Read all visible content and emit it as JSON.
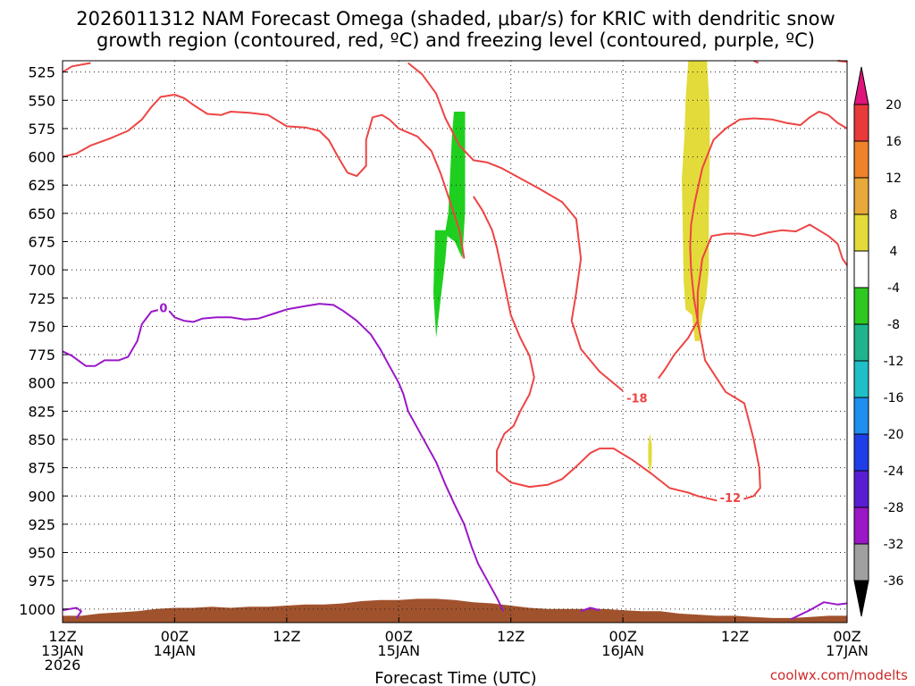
{
  "chart_data": {
    "type": "time-height contour plot",
    "title_line1": "2026011312 NAM Forecast Omega (shaded, μbar/s) for KRIC with dendritic snow",
    "title_line2": "growth region (contoured, red, ºC) and freezing level (contoured, purple, ºC)",
    "xlabel": "Forecast Time (UTC)",
    "credit": "coolwx.com/modelts",
    "x_range_hours": [
      0,
      84
    ],
    "x_ticks": [
      {
        "hour": 0,
        "l1": "12Z",
        "l2": "13JAN",
        "l3": "2026"
      },
      {
        "hour": 12,
        "l1": "00Z",
        "l2": "14JAN",
        "l3": ""
      },
      {
        "hour": 24,
        "l1": "12Z",
        "l2": "",
        "l3": ""
      },
      {
        "hour": 36,
        "l1": "00Z",
        "l2": "15JAN",
        "l3": ""
      },
      {
        "hour": 48,
        "l1": "12Z",
        "l2": "",
        "l3": ""
      },
      {
        "hour": 60,
        "l1": "00Z",
        "l2": "16JAN",
        "l3": ""
      },
      {
        "hour": 72,
        "l1": "12Z",
        "l2": "",
        "l3": ""
      },
      {
        "hour": 84,
        "l1": "00Z",
        "l2": "17JAN",
        "l3": ""
      }
    ],
    "y_ticks": [
      525,
      550,
      575,
      600,
      625,
      650,
      675,
      700,
      725,
      750,
      775,
      800,
      825,
      850,
      875,
      900,
      925,
      950,
      975,
      1000
    ],
    "y_range_hpa": [
      515,
      1012
    ],
    "colorbar": {
      "top_label": "20",
      "bottom_label": "-36",
      "boundary_labels": [
        "16",
        "12",
        "8",
        "4",
        "-4",
        "-8",
        "-12",
        "-16",
        "-20",
        "-24",
        "-28",
        "-32"
      ],
      "bands": [
        {
          "label": "12 to 16",
          "color": "#f0832a"
        },
        {
          "label": "8 to 12",
          "color": "#e8a93a"
        },
        {
          "label": "4 to 8",
          "color": "#e2db3a"
        },
        {
          "label": "-4 to 4",
          "color": "#ffffff"
        },
        {
          "label": "-8 to -4",
          "color": "#2ec820"
        },
        {
          "label": "-12 to -8",
          "color": "#20b48c"
        },
        {
          "label": "-16 to -12",
          "color": "#1fbfc8"
        },
        {
          "label": "-20 to -16",
          "color": "#1e8ef0"
        },
        {
          "label": "-24 to -20",
          "color": "#1e3ee8"
        },
        {
          "label": "-28 to -24",
          "color": "#5a1ed2"
        },
        {
          "label": "-32 to -28",
          "color": "#9a18c8"
        },
        {
          "label": "-36 to -32",
          "color": "#a0a0a0"
        }
      ],
      "top_band": {
        "label": "16 to 20",
        "color": "#e83a3a"
      },
      "top_arrow_color": "#e0147a",
      "bottom_arrow_color": "#000000"
    },
    "colors": {
      "dgz": "#ee4444",
      "freezing": "#9a18c8",
      "terrain": "#a0522d",
      "omega_up": "#1fcf1f",
      "omega_down": "#e2db3a"
    },
    "omega_shading": [
      {
        "name": "upward motion band",
        "range": "-8 to -4",
        "color": "#1fcf1f",
        "points": [
          [
            41.9,
            560
          ],
          [
            43.1,
            560
          ],
          [
            43.1,
            648
          ],
          [
            42.8,
            690
          ],
          [
            42.0,
            675
          ],
          [
            41.2,
            670
          ],
          [
            41.0,
            690
          ],
          [
            40.5,
            725
          ],
          [
            40.0,
            760
          ],
          [
            39.7,
            720
          ],
          [
            39.9,
            665
          ],
          [
            40.4,
            665
          ],
          [
            41.0,
            665
          ],
          [
            41.3,
            650
          ],
          [
            41.5,
            615
          ],
          [
            41.7,
            580
          ]
        ]
      },
      {
        "name": "sinking motion band",
        "range": "4 to 8",
        "color": "#e2db3a",
        "points": [
          [
            67.0,
            515
          ],
          [
            69.0,
            515
          ],
          [
            69.3,
            560
          ],
          [
            69.3,
            600
          ],
          [
            69.2,
            650
          ],
          [
            69.2,
            700
          ],
          [
            68.9,
            725
          ],
          [
            68.5,
            740
          ],
          [
            68.2,
            763
          ],
          [
            67.7,
            763
          ],
          [
            67.4,
            740
          ],
          [
            66.7,
            735
          ],
          [
            66.5,
            710
          ],
          [
            66.4,
            660
          ],
          [
            66.3,
            620
          ],
          [
            66.6,
            580
          ],
          [
            66.7,
            550
          ]
        ]
      },
      {
        "name": "sinking motion blip",
        "range": "4 to 8",
        "color": "#e2db3a",
        "points": [
          [
            62.9,
            845
          ],
          [
            63.1,
            855
          ],
          [
            63.1,
            870
          ],
          [
            62.9,
            880
          ],
          [
            62.7,
            870
          ],
          [
            62.7,
            855
          ]
        ]
      }
    ],
    "dgz_contours": [
      {
        "label": "",
        "points": [
          [
            0,
            600
          ],
          [
            1.5,
            597
          ],
          [
            3,
            590
          ],
          [
            5,
            584
          ],
          [
            7,
            577
          ],
          [
            8.5,
            567
          ],
          [
            9.5,
            556
          ],
          [
            10.5,
            547
          ],
          [
            12,
            545
          ],
          [
            13,
            548
          ],
          [
            14,
            554
          ],
          [
            15.5,
            562
          ],
          [
            17,
            563
          ],
          [
            18,
            560
          ],
          [
            20,
            561
          ],
          [
            22,
            563
          ],
          [
            24,
            573
          ],
          [
            26,
            574
          ],
          [
            27.5,
            577
          ],
          [
            28.5,
            585
          ],
          [
            29.5,
            600
          ],
          [
            30.5,
            614
          ],
          [
            31.5,
            617
          ],
          [
            32.5,
            608
          ],
          [
            32.5,
            585
          ],
          [
            33.2,
            565
          ],
          [
            34.2,
            563
          ],
          [
            35,
            567
          ],
          [
            36,
            575
          ],
          [
            38,
            582
          ],
          [
            39.5,
            595
          ],
          [
            40.5,
            615
          ],
          [
            41.5,
            640
          ],
          [
            42.5,
            665
          ],
          [
            43,
            690
          ]
        ]
      },
      {
        "label": "",
        "points": [
          [
            0,
            525
          ],
          [
            1,
            520
          ],
          [
            3,
            517
          ]
        ]
      },
      {
        "label": "",
        "points": [
          [
            37,
            517
          ],
          [
            38.5,
            527
          ],
          [
            40,
            544
          ],
          [
            41,
            566
          ],
          [
            42.5,
            590
          ],
          [
            44,
            603
          ],
          [
            45.5,
            605
          ],
          [
            47,
            610
          ],
          [
            49,
            619
          ],
          [
            51,
            628
          ],
          [
            53.5,
            640
          ],
          [
            55,
            655
          ],
          [
            55.5,
            690
          ],
          [
            55,
            720
          ],
          [
            54.5,
            745
          ],
          [
            55.5,
            770
          ],
          [
            57.5,
            790
          ],
          [
            60,
            807
          ]
        ]
      },
      {
        "label": "-18",
        "label_at": [
          61.5,
          814
        ],
        "points": [
          [
            74,
            515
          ],
          [
            74.5,
            517
          ]
        ]
      },
      {
        "label": "",
        "points": [
          [
            83,
            515
          ],
          [
            84,
            516
          ]
        ]
      },
      {
        "label": "",
        "points": [
          [
            84,
            696
          ],
          [
            83.5,
            690
          ],
          [
            83,
            677
          ],
          [
            82,
            670
          ],
          [
            80,
            660
          ],
          [
            78.5,
            666
          ],
          [
            77,
            665
          ],
          [
            75.5,
            667
          ],
          [
            74,
            670
          ],
          [
            72.5,
            668
          ],
          [
            71,
            668
          ],
          [
            69.5,
            670
          ],
          [
            68.5,
            690
          ],
          [
            68,
            720
          ],
          [
            68,
            745
          ],
          [
            67,
            760
          ],
          [
            65.5,
            775
          ],
          [
            64.5,
            788
          ],
          [
            63.8,
            796
          ]
        ]
      },
      {
        "label": "",
        "points": [
          [
            84,
            575
          ],
          [
            83,
            570
          ],
          [
            82,
            563
          ],
          [
            81,
            560
          ],
          [
            80,
            565
          ],
          [
            79,
            572
          ],
          [
            77.5,
            570
          ],
          [
            76,
            567
          ],
          [
            74,
            566
          ],
          [
            72.5,
            567
          ],
          [
            71,
            575
          ],
          [
            69.7,
            585
          ],
          [
            68.5,
            610
          ],
          [
            67.7,
            640
          ],
          [
            67.3,
            660
          ],
          [
            67.2,
            680
          ],
          [
            67.3,
            700
          ],
          [
            67.6,
            725
          ],
          [
            68.1,
            750
          ],
          [
            68.8,
            780
          ],
          [
            71,
            808
          ],
          [
            73,
            818
          ],
          [
            74,
            850
          ],
          [
            74.6,
            875
          ],
          [
            74.7,
            893
          ],
          [
            74,
            900
          ],
          [
            72,
            905
          ],
          [
            70,
            904
          ],
          [
            68,
            900
          ],
          [
            67,
            897
          ],
          [
            65,
            893
          ],
          [
            63,
            880
          ],
          [
            61,
            868
          ],
          [
            59,
            858
          ],
          [
            57.5,
            858
          ],
          [
            56.5,
            862
          ],
          [
            55,
            874
          ],
          [
            53.5,
            885
          ],
          [
            52,
            890
          ],
          [
            50,
            892
          ],
          [
            48,
            888
          ],
          [
            46.5,
            878
          ],
          [
            46.5,
            860
          ],
          [
            47.3,
            845
          ],
          [
            48.3,
            838
          ],
          [
            49,
            825
          ],
          [
            50,
            810
          ],
          [
            50.5,
            795
          ],
          [
            50,
            776
          ],
          [
            49,
            760
          ],
          [
            48,
            740
          ],
          [
            47.5,
            720
          ],
          [
            47,
            700
          ],
          [
            46.5,
            680
          ],
          [
            46,
            665
          ],
          [
            45,
            648
          ],
          [
            44,
            635
          ]
        ]
      },
      {
        "label": "-12",
        "label_at": [
          71.5,
          902
        ],
        "points": []
      }
    ],
    "freezing_contours": [
      {
        "label": "0",
        "label_at": [
          10.8,
          735
        ],
        "points": [
          [
            0,
            772
          ],
          [
            1,
            776
          ],
          [
            2,
            782
          ],
          [
            2.5,
            785
          ],
          [
            3.5,
            785
          ],
          [
            4.5,
            780
          ],
          [
            6,
            780
          ],
          [
            7,
            777
          ],
          [
            8,
            763
          ],
          [
            8.5,
            748
          ],
          [
            9.5,
            737
          ],
          [
            10.5,
            735
          ],
          [
            11.5,
            737
          ],
          [
            12,
            742
          ],
          [
            13,
            745
          ],
          [
            14,
            746
          ],
          [
            15,
            743
          ],
          [
            16.5,
            742
          ],
          [
            18,
            742
          ],
          [
            19.5,
            744
          ],
          [
            21,
            743
          ],
          [
            22.5,
            739
          ],
          [
            24,
            735
          ],
          [
            26,
            732
          ],
          [
            27.5,
            730
          ],
          [
            29,
            731
          ],
          [
            30,
            736
          ],
          [
            31.5,
            745
          ],
          [
            33,
            757
          ],
          [
            34,
            770
          ],
          [
            35,
            785
          ],
          [
            36,
            800
          ],
          [
            36.5,
            810
          ],
          [
            37,
            825
          ],
          [
            38,
            840
          ],
          [
            39,
            855
          ],
          [
            40,
            870
          ],
          [
            41,
            890
          ],
          [
            42,
            908
          ],
          [
            43,
            925
          ],
          [
            43.8,
            945
          ],
          [
            44.5,
            960
          ],
          [
            45.5,
            975
          ],
          [
            46.5,
            990
          ],
          [
            47.2,
            1002
          ]
        ]
      },
      {
        "label": "",
        "points": [
          [
            0,
            1001
          ],
          [
            1.5,
            999
          ],
          [
            2,
            1002
          ],
          [
            1.5,
            1008
          ]
        ]
      },
      {
        "label": "",
        "points": [
          [
            55.5,
            1002
          ],
          [
            56.5,
            999
          ],
          [
            57.5,
            1001
          ]
        ]
      },
      {
        "label": "",
        "points": [
          [
            78,
            1009
          ],
          [
            80,
            1001
          ],
          [
            81.5,
            994
          ],
          [
            83,
            996
          ],
          [
            84,
            995
          ]
        ]
      }
    ],
    "terrain_top": [
      [
        0,
        1006
      ],
      [
        2,
        1006
      ],
      [
        4,
        1004
      ],
      [
        6,
        1003
      ],
      [
        8,
        1002
      ],
      [
        10,
        1000
      ],
      [
        12,
        999
      ],
      [
        14,
        999
      ],
      [
        16,
        998
      ],
      [
        18,
        999
      ],
      [
        20,
        998
      ],
      [
        22,
        998
      ],
      [
        24,
        997
      ],
      [
        26,
        996
      ],
      [
        28,
        996
      ],
      [
        30,
        995
      ],
      [
        32,
        993
      ],
      [
        34,
        992
      ],
      [
        36,
        992
      ],
      [
        38,
        991
      ],
      [
        40,
        991
      ],
      [
        42,
        992
      ],
      [
        44,
        994
      ],
      [
        46,
        995
      ],
      [
        48,
        997
      ],
      [
        50,
        999
      ],
      [
        52,
        1000
      ],
      [
        54,
        1000
      ],
      [
        56,
        1000
      ],
      [
        58,
        1000
      ],
      [
        60,
        1001
      ],
      [
        62,
        1002
      ],
      [
        64,
        1002
      ],
      [
        66,
        1004
      ],
      [
        68,
        1005
      ],
      [
        70,
        1006
      ],
      [
        72,
        1006
      ],
      [
        74,
        1007
      ],
      [
        76,
        1008
      ],
      [
        78,
        1008
      ],
      [
        80,
        1007
      ],
      [
        82,
        1006
      ],
      [
        84,
        1006
      ]
    ]
  }
}
